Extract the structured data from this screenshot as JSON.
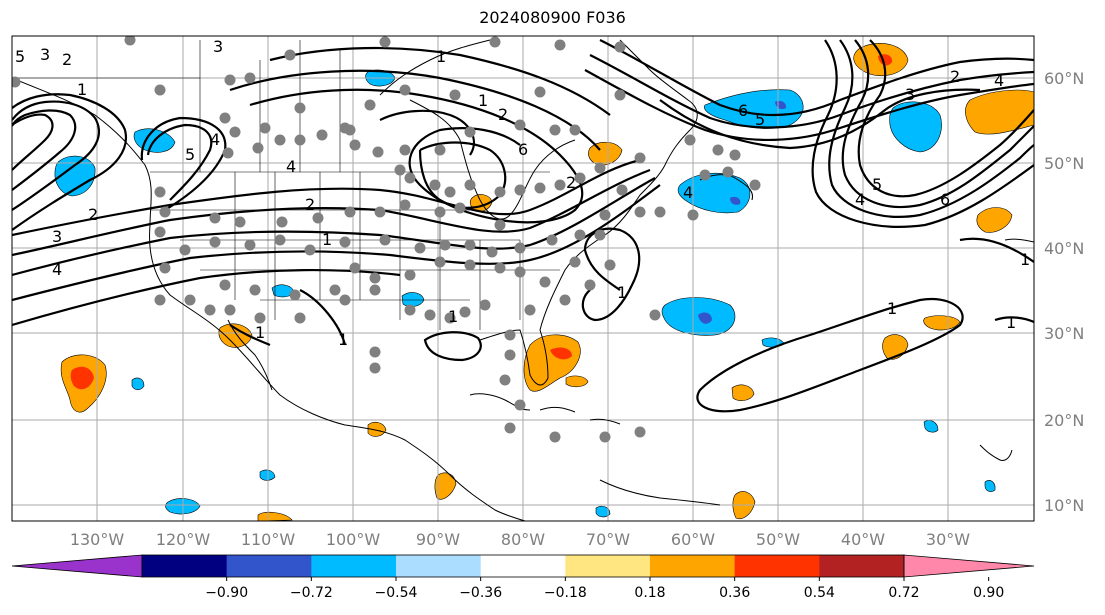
{
  "title": "2024080900 F036",
  "lat_labels": [
    "60°N",
    "50°N",
    "40°N",
    "30°N",
    "20°N",
    "10°N"
  ],
  "lon_labels": [
    "130°W",
    "120°W",
    "110°W",
    "100°W",
    "90°W",
    "80°W",
    "70°W",
    "60°W",
    "50°W",
    "40°W",
    "30°W"
  ],
  "colorbar": {
    "colors": [
      "#9933cc",
      "#000080",
      "#3355cc",
      "#00bbff",
      "#aaddff",
      "#ffffff",
      "#ffe680",
      "#ffa500",
      "#ff3300",
      "#b22222",
      "#ff88aa"
    ],
    "ticks": [
      "−0.90",
      "−0.72",
      "−0.54",
      "−0.36",
      "−0.18",
      "0.18",
      "0.36",
      "0.54",
      "0.72",
      "0.90"
    ]
  },
  "contour_labels": [
    "1",
    "2",
    "3",
    "4",
    "5",
    "6"
  ],
  "colors": {
    "land_outline": "#000000",
    "grid": "#aaaaaa",
    "dots": "#808080",
    "contour": "#000000"
  }
}
